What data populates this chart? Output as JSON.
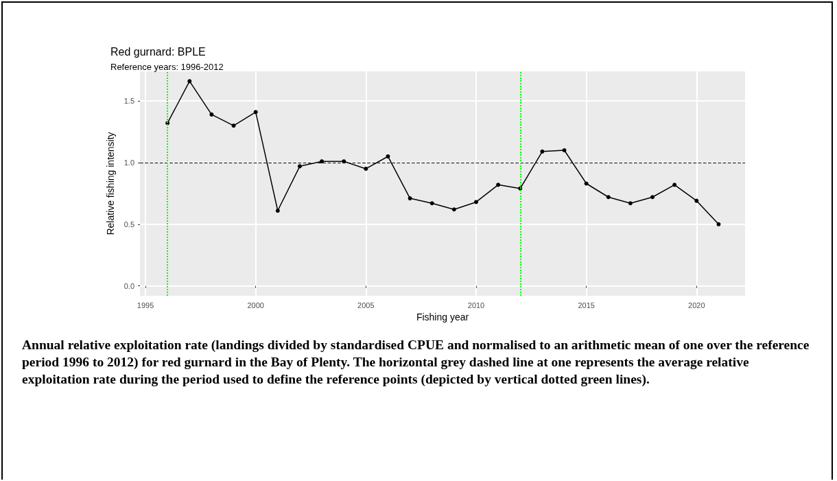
{
  "chart_data": {
    "type": "line",
    "title": "Red gurnard: BPLE",
    "subtitle": "Reference years: 1996-2012",
    "xlabel": "Fishing year",
    "ylabel": "Relative fishing intensity",
    "x": [
      1996,
      1997,
      1998,
      1999,
      2000,
      2001,
      2002,
      2003,
      2004,
      2005,
      2006,
      2007,
      2008,
      2009,
      2010,
      2011,
      2012,
      2013,
      2014,
      2015,
      2016,
      2017,
      2018,
      2019,
      2020,
      2021
    ],
    "series": [
      {
        "color": "#000000",
        "values": [
          1.32,
          1.66,
          1.39,
          1.3,
          1.41,
          0.61,
          0.97,
          1.01,
          1.01,
          0.95,
          1.05,
          0.71,
          0.67,
          0.62,
          0.68,
          0.82,
          0.79,
          1.09,
          1.1,
          0.83,
          0.72,
          0.67,
          0.72,
          0.82,
          0.69,
          0.5
        ]
      }
    ],
    "xlim": [
      1994.75,
      2022.2
    ],
    "xticks": [
      1995,
      2000,
      2005,
      2010,
      2015,
      2020
    ],
    "ylim": [
      -0.08,
      1.74
    ],
    "yticks": [
      {
        "value": 0,
        "label": "0.0"
      },
      0.5,
      {
        "value": 1,
        "label": "1.0"
      },
      1.5
    ],
    "ref_lines": [
      {
        "axis": "y",
        "value": 1,
        "color": "#000000",
        "line_style": "dashed"
      },
      {
        "axis": "x",
        "value": 1996,
        "color": "#00ff00",
        "line_style": "dotted"
      },
      {
        "axis": "x",
        "value": 2012,
        "color": "#00ff00",
        "line_style": "dotted"
      }
    ],
    "grid": true,
    "marker": "circle",
    "line_style": "solid",
    "annotations": [
      "Annual relative exploitation rate (landings divided by standardised CPUE and normalised to an arithmetic mean of one over the reference period 1996 to 2012) for red gurnard in the Bay of Plenty. The horizontal grey dashed line at one represents the average relative exploitation rate during the period used to define the reference points (depicted by vertical dotted green lines)."
    ]
  }
}
